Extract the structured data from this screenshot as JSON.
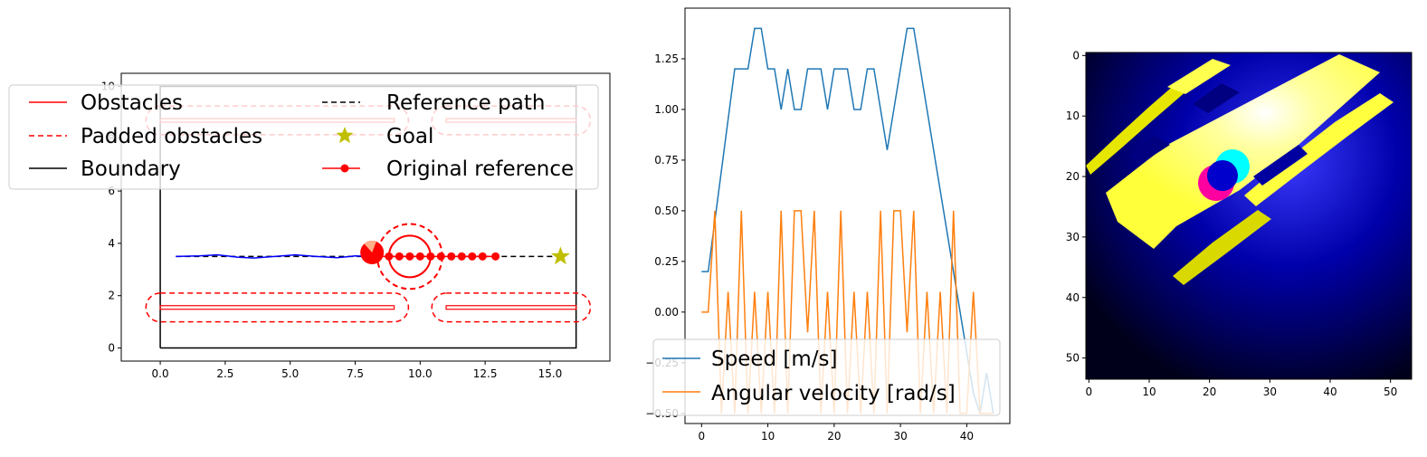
{
  "colors": {
    "obstacle": "#ff0000",
    "boundary": "#000000",
    "trajectory": "#0000ff",
    "goal": "#bfbf00",
    "speed": "#1f77b4",
    "angular": "#ff7f0e"
  },
  "chart_data": [
    {
      "type": "line",
      "panel": "map",
      "xlim": [
        -1.5,
        17.3
      ],
      "ylim": [
        -0.5,
        10.5
      ],
      "xticks": [
        "0.0",
        "2.5",
        "5.0",
        "7.5",
        "10.0",
        "12.5",
        "15.0"
      ],
      "yticks": [
        "0",
        "2",
        "4",
        "6",
        "8",
        "10"
      ],
      "boundary": {
        "x": [
          0,
          16,
          16,
          0,
          0
        ],
        "y": [
          0,
          0,
          10,
          10,
          0
        ]
      },
      "obstacles": [
        {
          "x0": 0,
          "x1": 9,
          "y": 1.55
        },
        {
          "x0": 11,
          "x1": 16,
          "y": 1.55
        },
        {
          "x0": 0,
          "x1": 9,
          "y": 8.7
        },
        {
          "x0": 11,
          "x1": 16,
          "y": 8.7
        }
      ],
      "reference_path": {
        "x": [
          0.6,
          15.4
        ],
        "y": [
          3.5,
          3.5
        ]
      },
      "original_reference": {
        "x": [
          8.0,
          8.4,
          8.8,
          9.2,
          9.6,
          10.0,
          10.4,
          10.8,
          11.2,
          11.6,
          12.0,
          12.4,
          12.9
        ],
        "y": [
          3.5,
          3.5,
          3.5,
          3.5,
          3.5,
          3.5,
          3.5,
          3.5,
          3.5,
          3.5,
          3.5,
          3.5,
          3.5
        ]
      },
      "trajectory": {
        "x": [
          0.6,
          1.5,
          2.2,
          3.0,
          3.6,
          4.4,
          5.2,
          6.0,
          6.8,
          7.5,
          8.0
        ],
        "y": [
          3.5,
          3.52,
          3.56,
          3.47,
          3.44,
          3.5,
          3.56,
          3.5,
          3.45,
          3.52,
          3.5
        ]
      },
      "robot": {
        "x": 8.15,
        "y": 3.65
      },
      "dynamic_obstacle": {
        "x": 9.6,
        "y": 3.5,
        "r": 0.8
      },
      "goal": {
        "x": 15.4,
        "y": 3.5
      },
      "legend": {
        "placement": "top",
        "entries": [
          "Obstacles",
          "Padded obstacles",
          "Boundary",
          "Reference path",
          "Goal",
          "Original reference"
        ]
      }
    },
    {
      "type": "line",
      "panel": "control",
      "x": [
        0,
        1,
        2,
        3,
        4,
        5,
        6,
        7,
        8,
        9,
        10,
        11,
        12,
        13,
        14,
        15,
        16,
        17,
        18,
        19,
        20,
        21,
        22,
        23,
        24,
        25,
        26,
        27,
        28,
        29,
        30,
        31,
        32,
        33,
        34,
        35,
        36,
        37,
        38,
        39,
        40,
        41,
        42,
        43,
        44
      ],
      "xlim": [
        -2.5,
        46.5
      ],
      "ylim": [
        -0.55,
        1.5
      ],
      "xticks": [
        "0",
        "10",
        "20",
        "30",
        "40"
      ],
      "yticks": [
        "1.25",
        "1.00",
        "0.75",
        "0.50",
        "0.25",
        "0.00",
        "−0.25",
        "−0.50"
      ],
      "series": [
        {
          "name": "Speed [m/s]",
          "values": [
            0.2,
            0.2,
            0.45,
            0.7,
            0.95,
            1.2,
            1.2,
            1.2,
            1.4,
            1.4,
            1.2,
            1.2,
            1.0,
            1.2,
            1.0,
            1.0,
            1.2,
            1.2,
            1.2,
            1.0,
            1.2,
            1.2,
            1.2,
            1.0,
            1.0,
            1.2,
            1.2,
            1.0,
            0.8,
            1.0,
            1.2,
            1.4,
            1.4,
            1.2,
            1.0,
            0.8,
            0.6,
            0.4,
            0.2,
            0.0,
            -0.2,
            -0.4,
            -0.5,
            -0.3,
            -0.5
          ]
        },
        {
          "name": "Angular velocity [rad/s]",
          "values": [
            0,
            0,
            0.5,
            -0.5,
            0.1,
            -0.5,
            0.5,
            -0.5,
            0.1,
            -0.5,
            0.1,
            -0.5,
            0.5,
            -0.5,
            0.5,
            0.5,
            -0.1,
            0.5,
            -0.5,
            0.1,
            -0.5,
            0.5,
            -0.5,
            0.1,
            -0.5,
            0.1,
            -0.5,
            0.5,
            -0.5,
            0.5,
            0.5,
            -0.1,
            0.5,
            -0.5,
            0.1,
            -0.5,
            0.1,
            -0.5,
            0.5,
            -0.5,
            -0.5,
            0.1,
            -0.5,
            -0.5,
            -0.5
          ]
        }
      ],
      "legend": {
        "placement": "lower center",
        "entries": [
          "Speed [m/s]",
          "Angular velocity [rad/s]"
        ]
      }
    },
    {
      "type": "heatmap",
      "panel": "image",
      "xlim": [
        -0.5,
        53.5
      ],
      "ylim": [
        53.5,
        -0.5
      ],
      "xticks": [
        "0",
        "10",
        "20",
        "30",
        "40",
        "50"
      ],
      "yticks": [
        "0",
        "10",
        "20",
        "30",
        "40",
        "50"
      ]
    }
  ]
}
